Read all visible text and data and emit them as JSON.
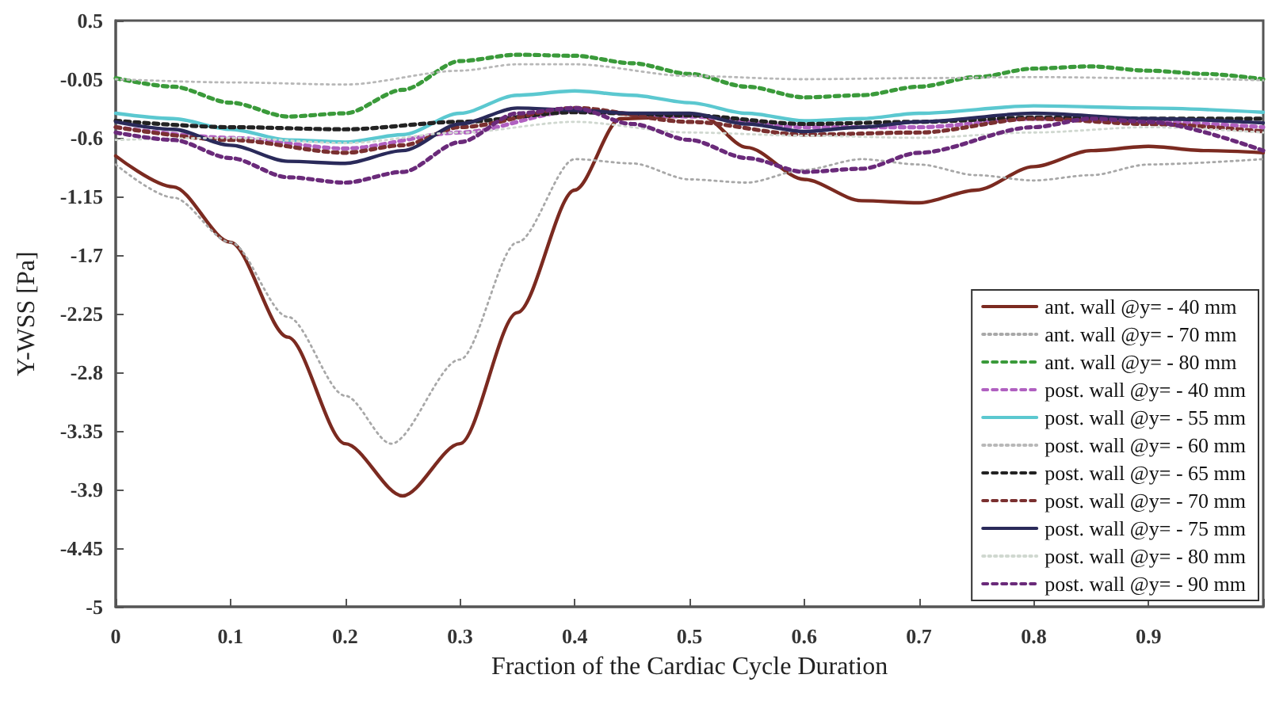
{
  "chart_data": {
    "type": "line",
    "xlabel": "Fraction of the Cardiac Cycle Duration",
    "ylabel": "Y-WSS [Pa]",
    "xlim": [
      0,
      1
    ],
    "xticks": [
      0,
      0.1,
      0.2,
      0.3,
      0.4,
      0.5,
      0.6,
      0.7,
      0.8,
      0.9,
      {
        "value": 1,
        "label": null
      }
    ],
    "ylim": [
      -5,
      0.5
    ],
    "yticks": [
      0.5,
      -0.05,
      -0.6,
      -1.15,
      -1.7,
      -2.25,
      -2.8,
      -3.35,
      -3.9,
      -4.45,
      -5
    ],
    "grid": false,
    "legend": "bottom right",
    "marker": "none",
    "series": [
      {
        "name": "ant. wall @y= - 40 mm",
        "color": "#7b2a20",
        "line_style": "solid",
        "x": [
          0,
          0.05,
          0.1,
          0.15,
          0.2,
          0.25,
          0.3,
          0.35,
          0.4,
          0.44,
          0.51,
          0.55,
          0.6,
          0.65,
          0.7,
          0.75,
          0.8,
          0.85,
          0.9,
          0.95,
          1
        ],
        "values": [
          -0.77,
          -1.06,
          -1.58,
          -2.47,
          -3.47,
          -3.96,
          -3.47,
          -2.24,
          -1.09,
          -0.42,
          -0.39,
          -0.69,
          -0.99,
          -1.19,
          -1.21,
          -1.09,
          -0.87,
          -0.72,
          -0.68,
          -0.72,
          -0.74
        ]
      },
      {
        "name": "ant. wall @y= - 70 mm",
        "color": "#a8a8a8",
        "line_style": "dotted",
        "x": [
          0,
          0.05,
          0.1,
          0.15,
          0.2,
          0.24,
          0.3,
          0.35,
          0.4,
          0.45,
          0.5,
          0.55,
          0.6,
          0.65,
          0.7,
          0.75,
          0.8,
          0.85,
          0.9,
          1
        ],
        "values": [
          -0.85,
          -1.16,
          -1.58,
          -2.28,
          -3.02,
          -3.47,
          -2.68,
          -1.58,
          -0.8,
          -0.84,
          -0.99,
          -1.02,
          -0.9,
          -0.8,
          -0.85,
          -0.95,
          -1.0,
          -0.95,
          -0.85,
          -0.8
        ]
      },
      {
        "name": "ant. wall @y= - 80 mm",
        "color": "#3a9a3a",
        "line_style": "dashed",
        "x": [
          0,
          0.05,
          0.1,
          0.15,
          0.2,
          0.25,
          0.3,
          0.35,
          0.4,
          0.45,
          0.5,
          0.55,
          0.6,
          0.65,
          0.7,
          0.75,
          0.8,
          0.85,
          0.9,
          0.95,
          1
        ],
        "values": [
          -0.04,
          -0.12,
          -0.27,
          -0.4,
          -0.37,
          -0.15,
          0.12,
          0.18,
          0.17,
          0.1,
          0,
          -0.12,
          -0.22,
          -0.2,
          -0.12,
          -0.03,
          0.05,
          0.07,
          0.03,
          0,
          -0.05
        ]
      },
      {
        "name": "post. wall @y= - 40 mm",
        "color": "#b060c0",
        "line_style": "dashed",
        "x": [
          0,
          0.1,
          0.2,
          0.3,
          0.4,
          0.5,
          0.6,
          0.7,
          0.8,
          0.9,
          1
        ],
        "values": [
          -0.5,
          -0.6,
          -0.7,
          -0.55,
          -0.35,
          -0.4,
          -0.5,
          -0.5,
          -0.42,
          -0.45,
          -0.5
        ]
      },
      {
        "name": "post. wall @y= - 55 mm",
        "color": "#5bc8d0",
        "line_style": "solid",
        "x": [
          0,
          0.05,
          0.1,
          0.15,
          0.2,
          0.25,
          0.3,
          0.35,
          0.4,
          0.45,
          0.5,
          0.55,
          0.6,
          0.65,
          0.7,
          0.8,
          0.9,
          1
        ],
        "values": [
          -0.37,
          -0.42,
          -0.52,
          -0.62,
          -0.64,
          -0.57,
          -0.37,
          -0.2,
          -0.16,
          -0.2,
          -0.27,
          -0.37,
          -0.44,
          -0.42,
          -0.37,
          -0.3,
          -0.32,
          -0.36
        ]
      },
      {
        "name": "post. wall @y= - 60 mm",
        "color": "#b8b8b8",
        "line_style": "dotted",
        "x": [
          0,
          0.1,
          0.2,
          0.3,
          0.35,
          0.4,
          0.5,
          0.6,
          0.7,
          0.8,
          0.9,
          1
        ],
        "values": [
          -0.05,
          -0.08,
          -0.1,
          0.03,
          0.09,
          0.09,
          -0.02,
          -0.05,
          -0.04,
          -0.03,
          -0.04,
          -0.06
        ]
      },
      {
        "name": "post. wall @y= - 65 mm",
        "color": "#222222",
        "line_style": "dashed",
        "x": [
          0,
          0.1,
          0.2,
          0.3,
          0.4,
          0.5,
          0.6,
          0.7,
          0.8,
          0.9,
          1
        ],
        "values": [
          -0.44,
          -0.5,
          -0.52,
          -0.45,
          -0.36,
          -0.39,
          -0.47,
          -0.45,
          -0.41,
          -0.42,
          -0.42
        ]
      },
      {
        "name": "post. wall @y= - 70 mm",
        "color": "#7a3030",
        "line_style": "dashed",
        "x": [
          0,
          0.1,
          0.2,
          0.25,
          0.3,
          0.4,
          0.5,
          0.6,
          0.7,
          0.8,
          0.9,
          1
        ],
        "values": [
          -0.5,
          -0.62,
          -0.74,
          -0.67,
          -0.5,
          -0.32,
          -0.45,
          -0.57,
          -0.55,
          -0.42,
          -0.47,
          -0.54
        ]
      },
      {
        "name": "post. wall @y= - 75 mm",
        "color": "#2a2a5a",
        "line_style": "solid",
        "x": [
          0,
          0.05,
          0.1,
          0.15,
          0.2,
          0.25,
          0.3,
          0.35,
          0.4,
          0.45,
          0.5,
          0.55,
          0.6,
          0.65,
          0.7,
          0.8,
          0.9,
          1
        ],
        "values": [
          -0.45,
          -0.52,
          -0.67,
          -0.82,
          -0.84,
          -0.72,
          -0.47,
          -0.32,
          -0.34,
          -0.37,
          -0.37,
          -0.47,
          -0.54,
          -0.5,
          -0.45,
          -0.37,
          -0.42,
          -0.46
        ]
      },
      {
        "name": "post. wall @y= - 80 mm",
        "color": "#d0d8d0",
        "line_style": "dotted",
        "x": [
          0,
          0.1,
          0.2,
          0.3,
          0.4,
          0.5,
          0.6,
          0.7,
          0.8,
          0.9,
          1
        ],
        "values": [
          -0.62,
          -0.6,
          -0.65,
          -0.55,
          -0.45,
          -0.55,
          -0.58,
          -0.6,
          -0.55,
          -0.5,
          -0.55
        ]
      },
      {
        "name": "post. wall @y= - 90 mm",
        "color": "#6a2a7a",
        "line_style": "dashed",
        "x": [
          0,
          0.05,
          0.1,
          0.15,
          0.2,
          0.25,
          0.3,
          0.35,
          0.4,
          0.45,
          0.5,
          0.55,
          0.6,
          0.65,
          0.7,
          0.8,
          0.85,
          0.9,
          1
        ],
        "values": [
          -0.55,
          -0.62,
          -0.79,
          -0.97,
          -1.02,
          -0.92,
          -0.64,
          -0.37,
          -0.32,
          -0.47,
          -0.62,
          -0.79,
          -0.92,
          -0.89,
          -0.74,
          -0.5,
          -0.42,
          -0.45,
          -0.72
        ]
      }
    ]
  }
}
